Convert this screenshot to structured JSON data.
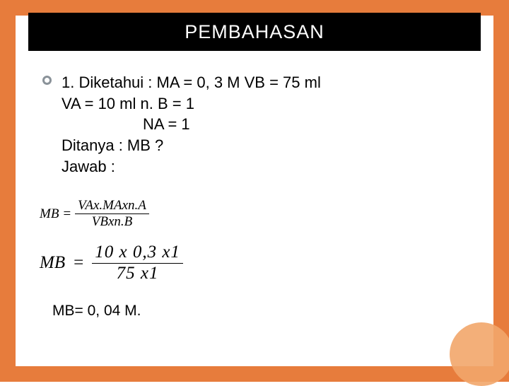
{
  "colors": {
    "frame": "#e77c3c",
    "bullet_border": "#8a9299",
    "circle_deco": "#f2a66a"
  },
  "title": "PEMBAHASAN",
  "problem": {
    "line1": "1. Diketahui : MA = 0, 3 M VB = 75 ml",
    "line2": "VA = 10 ml n. B = 1",
    "line3": "NA = 1",
    "line4": "Ditanya : MB ?",
    "line5": "Jawab :"
  },
  "formula1": {
    "lhs": "MB",
    "eq": "=",
    "num": "VAx.MAxn.A",
    "den": "VBxn.B"
  },
  "formula2": {
    "lhs": "MB",
    "eq": "=",
    "num": "10 x 0,3 x1",
    "den": "75 x1"
  },
  "result": "MB= 0, 04 M."
}
